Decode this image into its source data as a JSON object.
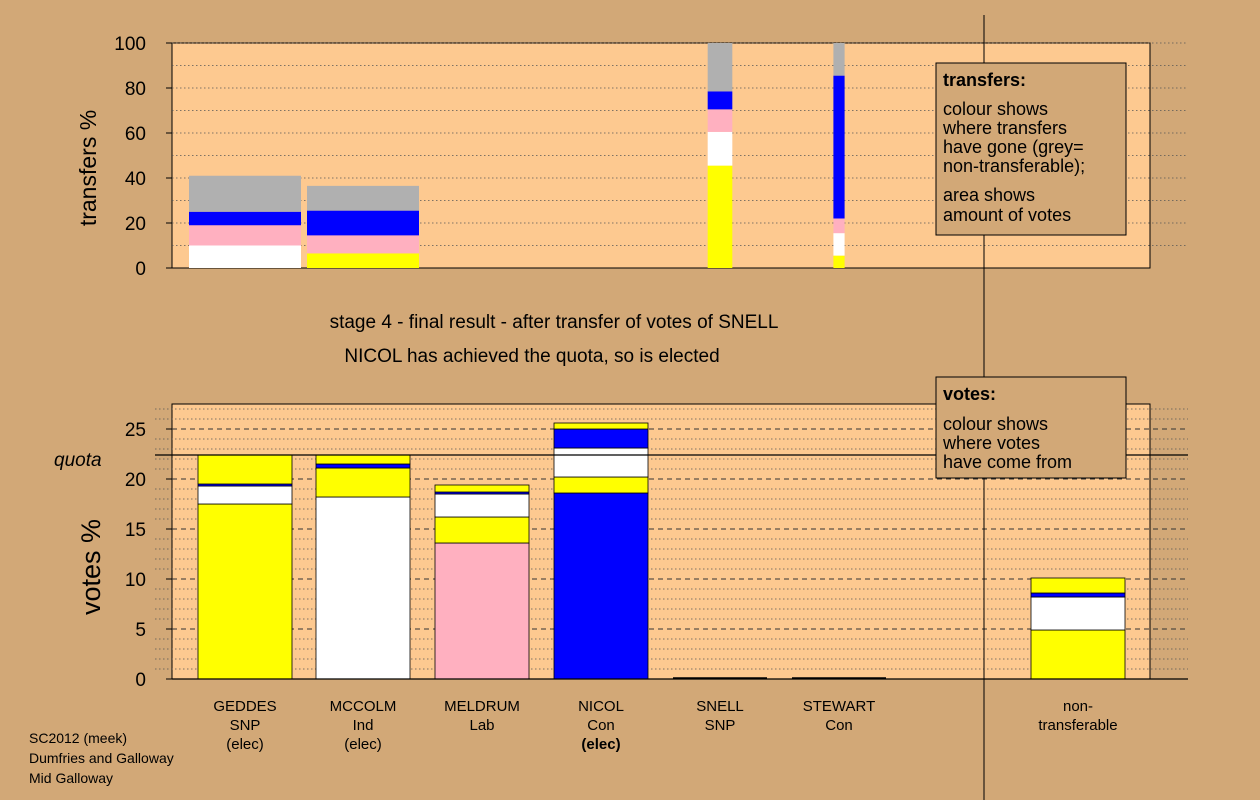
{
  "colors": {
    "page_bg": "#d2a877",
    "plot_bg": "#fdc990",
    "GEDDES": "#ffff00",
    "MCCOLM": "#ffffff",
    "MELDRUM": "#ffb0c0",
    "NICOL": "#0000ff",
    "SNELL": "#ffff00",
    "STEWART": "#0000ff",
    "nontransferable": "#b0b0b0"
  },
  "caption": {
    "line1": "stage 4 - final result - after transfer of votes of SNELL",
    "line2": "NICOL has achieved the quota, so is elected"
  },
  "footer": {
    "line1": "SC2012 (meek)",
    "line2": "Dumfries and Galloway",
    "line3": "Mid Galloway"
  },
  "legend_transfers": {
    "title": "transfers:",
    "lines": [
      "colour shows",
      "where transfers",
      "have gone (grey=",
      "non-transferable);"
    ],
    "lines2": [
      "area shows",
      "amount of votes"
    ]
  },
  "legend_votes": {
    "title": "votes:",
    "lines": [
      "colour shows",
      "where votes",
      "have come from"
    ]
  },
  "candidates": [
    {
      "name": "GEDDES",
      "party": "SNP",
      "status": "(elec)",
      "status_bold": false
    },
    {
      "name": "MCCOLM",
      "party": "Ind",
      "status": "(elec)",
      "status_bold": false
    },
    {
      "name": "MELDRUM",
      "party": "Lab",
      "status": "",
      "status_bold": false
    },
    {
      "name": "NICOL",
      "party": "Con",
      "status": "(elec)",
      "status_bold": true
    },
    {
      "name": "SNELL",
      "party": "SNP",
      "status": "",
      "status_bold": false
    },
    {
      "name": "STEWART",
      "party": "Con",
      "status": "",
      "status_bold": false
    },
    {
      "name": "non-",
      "party": "transferable",
      "status": "",
      "status_bold": false
    }
  ],
  "chart_data": [
    {
      "type": "bar",
      "stacked": true,
      "ylabel": "transfers %",
      "ylim": [
        0,
        100
      ],
      "yticks": [
        0,
        20,
        40,
        60,
        80,
        100
      ],
      "bars": [
        {
          "candidate": "GEDDES",
          "width_share": 1.0,
          "segments": [
            {
              "to": "GEDDES",
              "value": 0
            },
            {
              "to": "MCCOLM",
              "value": 10
            },
            {
              "to": "MELDRUM",
              "value": 9
            },
            {
              "to": "NICOL",
              "value": 6
            },
            {
              "to": "nontransferable",
              "value": 16
            }
          ]
        },
        {
          "candidate": "MCCOLM",
          "width_share": 1.0,
          "segments": [
            {
              "to": "GEDDES",
              "value": 6.5
            },
            {
              "to": "MCCOLM",
              "value": 0
            },
            {
              "to": "MELDRUM",
              "value": 8
            },
            {
              "to": "NICOL",
              "value": 11
            },
            {
              "to": "nontransferable",
              "value": 11
            }
          ]
        },
        {
          "candidate": "SNELL",
          "width_share": 0.22,
          "segments": [
            {
              "to": "GEDDES",
              "value": 45.5
            },
            {
              "to": "MCCOLM",
              "value": 15
            },
            {
              "to": "MELDRUM",
              "value": 10
            },
            {
              "to": "NICOL",
              "value": 8
            },
            {
              "to": "nontransferable",
              "value": 21.5
            }
          ]
        },
        {
          "candidate": "STEWART",
          "width_share": 0.1,
          "segments": [
            {
              "to": "GEDDES",
              "value": 5.5
            },
            {
              "to": "MCCOLM",
              "value": 10
            },
            {
              "to": "MELDRUM",
              "value": 6.5
            },
            {
              "to": "NICOL",
              "value": 63.5
            },
            {
              "to": "nontransferable",
              "value": 14.5
            }
          ]
        }
      ]
    },
    {
      "type": "bar",
      "stacked": true,
      "ylabel": "votes %",
      "ylim": [
        0,
        27.5
      ],
      "yticks": [
        0,
        5,
        10,
        15,
        20,
        25
      ],
      "quota": 22.4,
      "quota_label": "quota",
      "bars": [
        {
          "candidate": "GEDDES",
          "segments": [
            {
              "from": "GEDDES",
              "value": 17.5
            },
            {
              "from": "MCCOLM",
              "value": 1.8
            },
            {
              "from": "NICOL",
              "value": 0.2
            },
            {
              "from": "SNELL",
              "value": 2.9
            }
          ]
        },
        {
          "candidate": "MCCOLM",
          "segments": [
            {
              "from": "MCCOLM",
              "value": 18.2
            },
            {
              "from": "GEDDES",
              "value": 2.9
            },
            {
              "from": "NICOL",
              "value": 0.4
            },
            {
              "from": "SNELL",
              "value": 0.9
            }
          ]
        },
        {
          "candidate": "MELDRUM",
          "segments": [
            {
              "from": "MELDRUM",
              "value": 13.6
            },
            {
              "from": "GEDDES",
              "value": 2.6
            },
            {
              "from": "MCCOLM",
              "value": 2.3
            },
            {
              "from": "NICOL",
              "value": 0.2
            },
            {
              "from": "SNELL",
              "value": 0.7
            }
          ]
        },
        {
          "candidate": "NICOL",
          "segments": [
            {
              "from": "NICOL",
              "value": 18.6
            },
            {
              "from": "GEDDES",
              "value": 1.6
            },
            {
              "from": "MCCOLM",
              "value": 2.9
            },
            {
              "from": "STEWART",
              "value": 1.9
            },
            {
              "from": "SNELL",
              "value": 0.6
            }
          ]
        },
        {
          "candidate": "SNELL",
          "segments": []
        },
        {
          "candidate": "STEWART",
          "segments": []
        },
        {
          "candidate": "non-transferable",
          "segments": [
            {
              "from": "GEDDES",
              "value": 4.9
            },
            {
              "from": "MCCOLM",
              "value": 3.3
            },
            {
              "from": "NICOL",
              "value": 0.4
            },
            {
              "from": "SNELL",
              "value": 1.5
            }
          ]
        }
      ]
    }
  ]
}
